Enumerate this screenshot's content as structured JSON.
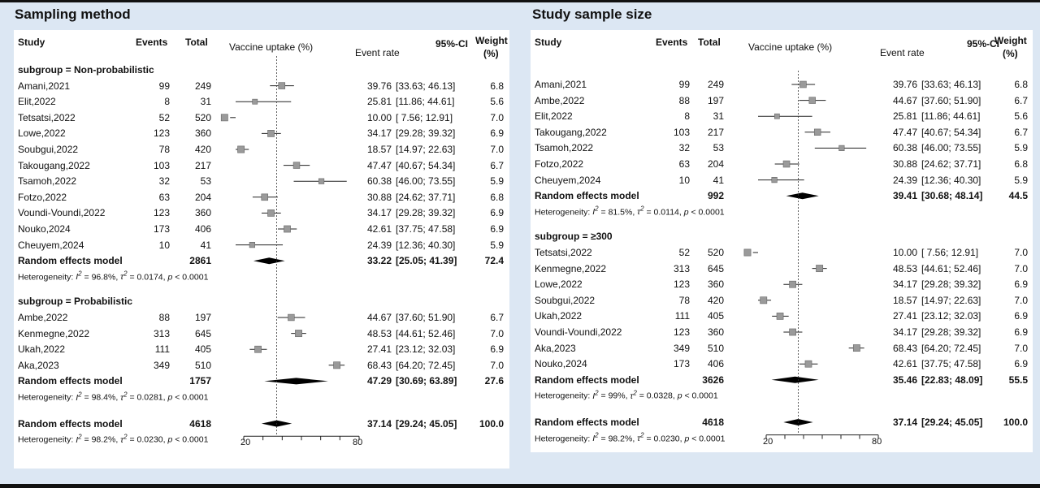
{
  "headers": {
    "study": "Study",
    "events": "Events",
    "total": "Total",
    "vaccine_uptake": "Vaccine uptake (%)",
    "event_rate": "Event rate",
    "ci": "95%-CI",
    "weight_line1": "Weight",
    "weight_line2": "(%)"
  },
  "x_axis_ticks": [
    "20",
    "80"
  ],
  "chart_data": [
    {
      "type": "forest",
      "title": "Sampling method",
      "xlim": [
        20,
        80
      ],
      "pooled_line": 37.14,
      "groups": [
        {
          "label": "subgroup = Non-probabilistic",
          "studies": [
            {
              "name": "Amani,2021",
              "events": "99",
              "total": "249",
              "rate": 39.76,
              "lo": 33.63,
              "hi": 46.13,
              "rate_text": "39.76",
              "ci_text": "[33.63; 46.13]",
              "weight": "6.8"
            },
            {
              "name": "Elit,2022",
              "events": "8",
              "total": "31",
              "rate": 25.81,
              "lo": 11.86,
              "hi": 44.61,
              "rate_text": "25.81",
              "ci_text": "[11.86; 44.61]",
              "weight": "5.6"
            },
            {
              "name": "Tetsatsi,2022",
              "events": "52",
              "total": "520",
              "rate": 10.0,
              "lo": 7.56,
              "hi": 12.91,
              "rate_text": "10.00",
              "ci_text": "[ 7.56; 12.91]",
              "weight": "7.0"
            },
            {
              "name": "Lowe,2022",
              "events": "123",
              "total": "360",
              "rate": 34.17,
              "lo": 29.28,
              "hi": 39.32,
              "rate_text": "34.17",
              "ci_text": "[29.28; 39.32]",
              "weight": "6.9"
            },
            {
              "name": "Soubgui,2022",
              "events": "78",
              "total": "420",
              "rate": 18.57,
              "lo": 14.97,
              "hi": 22.63,
              "rate_text": "18.57",
              "ci_text": "[14.97; 22.63]",
              "weight": "7.0"
            },
            {
              "name": "Takougang,2022",
              "events": "103",
              "total": "217",
              "rate": 47.47,
              "lo": 40.67,
              "hi": 54.34,
              "rate_text": "47.47",
              "ci_text": "[40.67; 54.34]",
              "weight": "6.7"
            },
            {
              "name": "Tsamoh,2022",
              "events": "32",
              "total": "53",
              "rate": 60.38,
              "lo": 46.0,
              "hi": 73.55,
              "rate_text": "60.38",
              "ci_text": "[46.00; 73.55]",
              "weight": "5.9"
            },
            {
              "name": "Fotzo,2022",
              "events": "63",
              "total": "204",
              "rate": 30.88,
              "lo": 24.62,
              "hi": 37.71,
              "rate_text": "30.88",
              "ci_text": "[24.62; 37.71]",
              "weight": "6.8"
            },
            {
              "name": "Voundi-Voundi,2022",
              "events": "123",
              "total": "360",
              "rate": 34.17,
              "lo": 29.28,
              "hi": 39.32,
              "rate_text": "34.17",
              "ci_text": "[29.28; 39.32]",
              "weight": "6.9"
            },
            {
              "name": "Nouko,2024",
              "events": "173",
              "total": "406",
              "rate": 42.61,
              "lo": 37.75,
              "hi": 47.58,
              "rate_text": "42.61",
              "ci_text": "[37.75; 47.58]",
              "weight": "6.9"
            },
            {
              "name": "Cheuyem,2024",
              "events": "10",
              "total": "41",
              "rate": 24.39,
              "lo": 12.36,
              "hi": 40.3,
              "rate_text": "24.39",
              "ci_text": "[12.36; 40.30]",
              "weight": "5.9"
            }
          ],
          "model": {
            "label": "Random effects model",
            "total": "2861",
            "rate": 33.22,
            "lo": 25.05,
            "hi": 41.39,
            "rate_text": "33.22",
            "ci_text": "[25.05; 41.39]",
            "weight": "72.4"
          },
          "heterogeneity": {
            "prefix": "Heterogeneity: ",
            "i2": "= 96.8%, ",
            "tau2": "= 0.0174, ",
            "p": "< 0.0001"
          }
        },
        {
          "label": "subgroup = Probabilistic",
          "studies": [
            {
              "name": "Ambe,2022",
              "events": "88",
              "total": "197",
              "rate": 44.67,
              "lo": 37.6,
              "hi": 51.9,
              "rate_text": "44.67",
              "ci_text": "[37.60; 51.90]",
              "weight": "6.7"
            },
            {
              "name": "Kenmegne,2022",
              "events": "313",
              "total": "645",
              "rate": 48.53,
              "lo": 44.61,
              "hi": 52.46,
              "rate_text": "48.53",
              "ci_text": "[44.61; 52.46]",
              "weight": "7.0"
            },
            {
              "name": "Ukah,2022",
              "events": "111",
              "total": "405",
              "rate": 27.41,
              "lo": 23.12,
              "hi": 32.03,
              "rate_text": "27.41",
              "ci_text": "[23.12; 32.03]",
              "weight": "6.9"
            },
            {
              "name": "Aka,2023",
              "events": "349",
              "total": "510",
              "rate": 68.43,
              "lo": 64.2,
              "hi": 72.45,
              "rate_text": "68.43",
              "ci_text": "[64.20; 72.45]",
              "weight": "7.0"
            }
          ],
          "model": {
            "label": "Random effects model",
            "total": "1757",
            "rate": 47.29,
            "lo": 30.69,
            "hi": 63.89,
            "rate_text": "47.29",
            "ci_text": "[30.69; 63.89]",
            "weight": "27.6"
          },
          "heterogeneity": {
            "prefix": "Heterogeneity: ",
            "i2": "= 98.4%, ",
            "tau2": "= 0.0281, ",
            "p": "< 0.0001"
          }
        }
      ],
      "overall": {
        "label": "Random effects model",
        "total": "4618",
        "rate": 37.14,
        "lo": 29.24,
        "hi": 45.05,
        "rate_text": "37.14",
        "ci_text": "[29.24; 45.05]",
        "weight": "100.0"
      },
      "overall_heterogeneity": {
        "prefix": "Heterogeneity: ",
        "i2": "= 98.2%, ",
        "tau2": "= 0.0230, ",
        "p": "< 0.0001"
      }
    },
    {
      "type": "forest",
      "title": "Study sample size",
      "xlim": [
        20,
        80
      ],
      "pooled_line": 37.14,
      "groups": [
        {
          "label": "",
          "studies": [
            {
              "name": "Amani,2021",
              "events": "99",
              "total": "249",
              "rate": 39.76,
              "lo": 33.63,
              "hi": 46.13,
              "rate_text": "39.76",
              "ci_text": "[33.63; 46.13]",
              "weight": "6.8"
            },
            {
              "name": "Ambe,2022",
              "events": "88",
              "total": "197",
              "rate": 44.67,
              "lo": 37.6,
              "hi": 51.9,
              "rate_text": "44.67",
              "ci_text": "[37.60; 51.90]",
              "weight": "6.7"
            },
            {
              "name": "Elit,2022",
              "events": "8",
              "total": "31",
              "rate": 25.81,
              "lo": 11.86,
              "hi": 44.61,
              "rate_text": "25.81",
              "ci_text": "[11.86; 44.61]",
              "weight": "5.6"
            },
            {
              "name": "Takougang,2022",
              "events": "103",
              "total": "217",
              "rate": 47.47,
              "lo": 40.67,
              "hi": 54.34,
              "rate_text": "47.47",
              "ci_text": "[40.67; 54.34]",
              "weight": "6.7"
            },
            {
              "name": "Tsamoh,2022",
              "events": "32",
              "total": "53",
              "rate": 60.38,
              "lo": 46.0,
              "hi": 73.55,
              "rate_text": "60.38",
              "ci_text": "[46.00; 73.55]",
              "weight": "5.9"
            },
            {
              "name": "Fotzo,2022",
              "events": "63",
              "total": "204",
              "rate": 30.88,
              "lo": 24.62,
              "hi": 37.71,
              "rate_text": "30.88",
              "ci_text": "[24.62; 37.71]",
              "weight": "6.8"
            },
            {
              "name": "Cheuyem,2024",
              "events": "10",
              "total": "41",
              "rate": 24.39,
              "lo": 12.36,
              "hi": 40.3,
              "rate_text": "24.39",
              "ci_text": "[12.36; 40.30]",
              "weight": "5.9"
            }
          ],
          "model": {
            "label": "Random effects model",
            "total": "992",
            "rate": 39.41,
            "lo": 30.68,
            "hi": 48.14,
            "rate_text": "39.41",
            "ci_text": "[30.68; 48.14]",
            "weight": "44.5"
          },
          "heterogeneity": {
            "prefix": "Heterogeneity: ",
            "i2": "= 81.5%, ",
            "tau2": "= 0.0114, ",
            "p": "< 0.0001"
          }
        },
        {
          "label": "subgroup = ≥300",
          "studies": [
            {
              "name": "Tetsatsi,2022",
              "events": "52",
              "total": "520",
              "rate": 10.0,
              "lo": 7.56,
              "hi": 12.91,
              "rate_text": "10.00",
              "ci_text": "[ 7.56; 12.91]",
              "weight": "7.0"
            },
            {
              "name": "Kenmegne,2022",
              "events": "313",
              "total": "645",
              "rate": 48.53,
              "lo": 44.61,
              "hi": 52.46,
              "rate_text": "48.53",
              "ci_text": "[44.61; 52.46]",
              "weight": "7.0"
            },
            {
              "name": "Lowe,2022",
              "events": "123",
              "total": "360",
              "rate": 34.17,
              "lo": 29.28,
              "hi": 39.32,
              "rate_text": "34.17",
              "ci_text": "[29.28; 39.32]",
              "weight": "6.9"
            },
            {
              "name": "Soubgui,2022",
              "events": "78",
              "total": "420",
              "rate": 18.57,
              "lo": 14.97,
              "hi": 22.63,
              "rate_text": "18.57",
              "ci_text": "[14.97; 22.63]",
              "weight": "7.0"
            },
            {
              "name": "Ukah,2022",
              "events": "111",
              "total": "405",
              "rate": 27.41,
              "lo": 23.12,
              "hi": 32.03,
              "rate_text": "27.41",
              "ci_text": "[23.12; 32.03]",
              "weight": "6.9"
            },
            {
              "name": "Voundi-Voundi,2022",
              "events": "123",
              "total": "360",
              "rate": 34.17,
              "lo": 29.28,
              "hi": 39.32,
              "rate_text": "34.17",
              "ci_text": "[29.28; 39.32]",
              "weight": "6.9"
            },
            {
              "name": "Aka,2023",
              "events": "349",
              "total": "510",
              "rate": 68.43,
              "lo": 64.2,
              "hi": 72.45,
              "rate_text": "68.43",
              "ci_text": "[64.20; 72.45]",
              "weight": "7.0"
            },
            {
              "name": "Nouko,2024",
              "events": "173",
              "total": "406",
              "rate": 42.61,
              "lo": 37.75,
              "hi": 47.58,
              "rate_text": "42.61",
              "ci_text": "[37.75; 47.58]",
              "weight": "6.9"
            }
          ],
          "model": {
            "label": "Random effects model",
            "total": "3626",
            "rate": 35.46,
            "lo": 22.83,
            "hi": 48.09,
            "rate_text": "35.46",
            "ci_text": "[22.83; 48.09]",
            "weight": "55.5"
          },
          "heterogeneity": {
            "prefix": "Heterogeneity: ",
            "i2": "= 99%, ",
            "tau2": "= 0.0328, ",
            "p": "< 0.0001"
          }
        }
      ],
      "overall": {
        "label": "Random effects model",
        "total": "4618",
        "rate": 37.14,
        "lo": 29.24,
        "hi": 45.05,
        "rate_text": "37.14",
        "ci_text": "[29.24; 45.05]",
        "weight": "100.0"
      },
      "overall_heterogeneity": {
        "prefix": "Heterogeneity: ",
        "i2": "= 98.2%, ",
        "tau2": "= 0.0230, ",
        "p": "< 0.0001"
      }
    }
  ]
}
